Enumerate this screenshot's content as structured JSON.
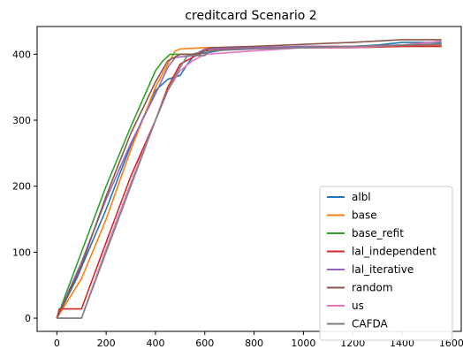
{
  "chart_data": {
    "type": "line",
    "title": "creditcard Scenario 2",
    "xlabel": "",
    "ylabel": "",
    "xlim": [
      -80,
      1640
    ],
    "ylim": [
      -20,
      442
    ],
    "xticks": [
      0,
      200,
      400,
      600,
      800,
      1000,
      1200,
      1400,
      1600
    ],
    "yticks": [
      0,
      100,
      200,
      300,
      400
    ],
    "grid": false,
    "legend_position": "lower-right",
    "series": [
      {
        "name": "albl",
        "color": "#1f77b4",
        "points": [
          [
            0,
            0
          ],
          [
            80,
            60
          ],
          [
            200,
            165
          ],
          [
            300,
            262
          ],
          [
            400,
            345
          ],
          [
            450,
            362
          ],
          [
            500,
            368
          ],
          [
            530,
            385
          ],
          [
            560,
            400
          ],
          [
            600,
            402
          ],
          [
            700,
            408
          ],
          [
            900,
            410
          ],
          [
            1100,
            410
          ],
          [
            1300,
            414
          ],
          [
            1400,
            418
          ],
          [
            1560,
            418
          ]
        ]
      },
      {
        "name": "base",
        "color": "#ff7f0e",
        "points": [
          [
            0,
            0
          ],
          [
            50,
            30
          ],
          [
            100,
            60
          ],
          [
            200,
            150
          ],
          [
            300,
            255
          ],
          [
            400,
            350
          ],
          [
            450,
            385
          ],
          [
            480,
            405
          ],
          [
            500,
            408
          ],
          [
            600,
            410
          ],
          [
            800,
            410
          ],
          [
            1000,
            412
          ],
          [
            1200,
            412
          ],
          [
            1400,
            412
          ],
          [
            1560,
            414
          ]
        ]
      },
      {
        "name": "base_refit",
        "color": "#2ca02c",
        "points": [
          [
            0,
            0
          ],
          [
            100,
            100
          ],
          [
            200,
            200
          ],
          [
            300,
            290
          ],
          [
            400,
            375
          ],
          [
            430,
            390
          ],
          [
            460,
            400
          ],
          [
            550,
            400
          ],
          [
            600,
            405
          ],
          [
            800,
            410
          ],
          [
            1000,
            410
          ],
          [
            1200,
            410
          ],
          [
            1400,
            412
          ],
          [
            1560,
            412
          ]
        ]
      },
      {
        "name": "lal_independent",
        "color": "#d62728",
        "points": [
          [
            0,
            0
          ],
          [
            10,
            14
          ],
          [
            100,
            14
          ],
          [
            200,
            115
          ],
          [
            300,
            215
          ],
          [
            400,
            300
          ],
          [
            450,
            350
          ],
          [
            500,
            385
          ],
          [
            550,
            395
          ],
          [
            600,
            405
          ],
          [
            800,
            410
          ],
          [
            1000,
            410
          ],
          [
            1200,
            410
          ],
          [
            1400,
            412
          ],
          [
            1560,
            412
          ]
        ]
      },
      {
        "name": "lal_iterative",
        "color": "#9467bd",
        "points": [
          [
            0,
            0
          ],
          [
            100,
            85
          ],
          [
            200,
            180
          ],
          [
            300,
            265
          ],
          [
            400,
            340
          ],
          [
            450,
            380
          ],
          [
            480,
            395
          ],
          [
            550,
            398
          ],
          [
            600,
            408
          ],
          [
            800,
            410
          ],
          [
            1000,
            412
          ],
          [
            1200,
            412
          ],
          [
            1400,
            414
          ],
          [
            1560,
            415
          ]
        ]
      },
      {
        "name": "random",
        "color": "#8c564b",
        "points": [
          [
            0,
            0
          ],
          [
            100,
            80
          ],
          [
            200,
            185
          ],
          [
            300,
            280
          ],
          [
            400,
            358
          ],
          [
            450,
            390
          ],
          [
            500,
            400
          ],
          [
            580,
            400
          ],
          [
            620,
            410
          ],
          [
            800,
            412
          ],
          [
            1000,
            415
          ],
          [
            1200,
            418
          ],
          [
            1400,
            422
          ],
          [
            1560,
            422
          ]
        ]
      },
      {
        "name": "us",
        "color": "#e377c2",
        "points": [
          [
            0,
            0
          ],
          [
            100,
            0
          ],
          [
            200,
            105
          ],
          [
            300,
            205
          ],
          [
            400,
            300
          ],
          [
            450,
            345
          ],
          [
            500,
            375
          ],
          [
            550,
            390
          ],
          [
            600,
            400
          ],
          [
            800,
            405
          ],
          [
            1000,
            410
          ],
          [
            1200,
            410
          ],
          [
            1400,
            414
          ],
          [
            1560,
            420
          ]
        ]
      },
      {
        "name": "CAFDA",
        "color": "#7f7f7f",
        "points": [
          [
            0,
            0
          ],
          [
            100,
            0
          ],
          [
            200,
            100
          ],
          [
            300,
            200
          ],
          [
            400,
            300
          ],
          [
            450,
            345
          ],
          [
            500,
            380
          ],
          [
            530,
            398
          ],
          [
            600,
            398
          ],
          [
            620,
            405
          ],
          [
            800,
            408
          ],
          [
            1000,
            410
          ],
          [
            1200,
            412
          ],
          [
            1400,
            414
          ],
          [
            1560,
            416
          ]
        ]
      }
    ]
  }
}
